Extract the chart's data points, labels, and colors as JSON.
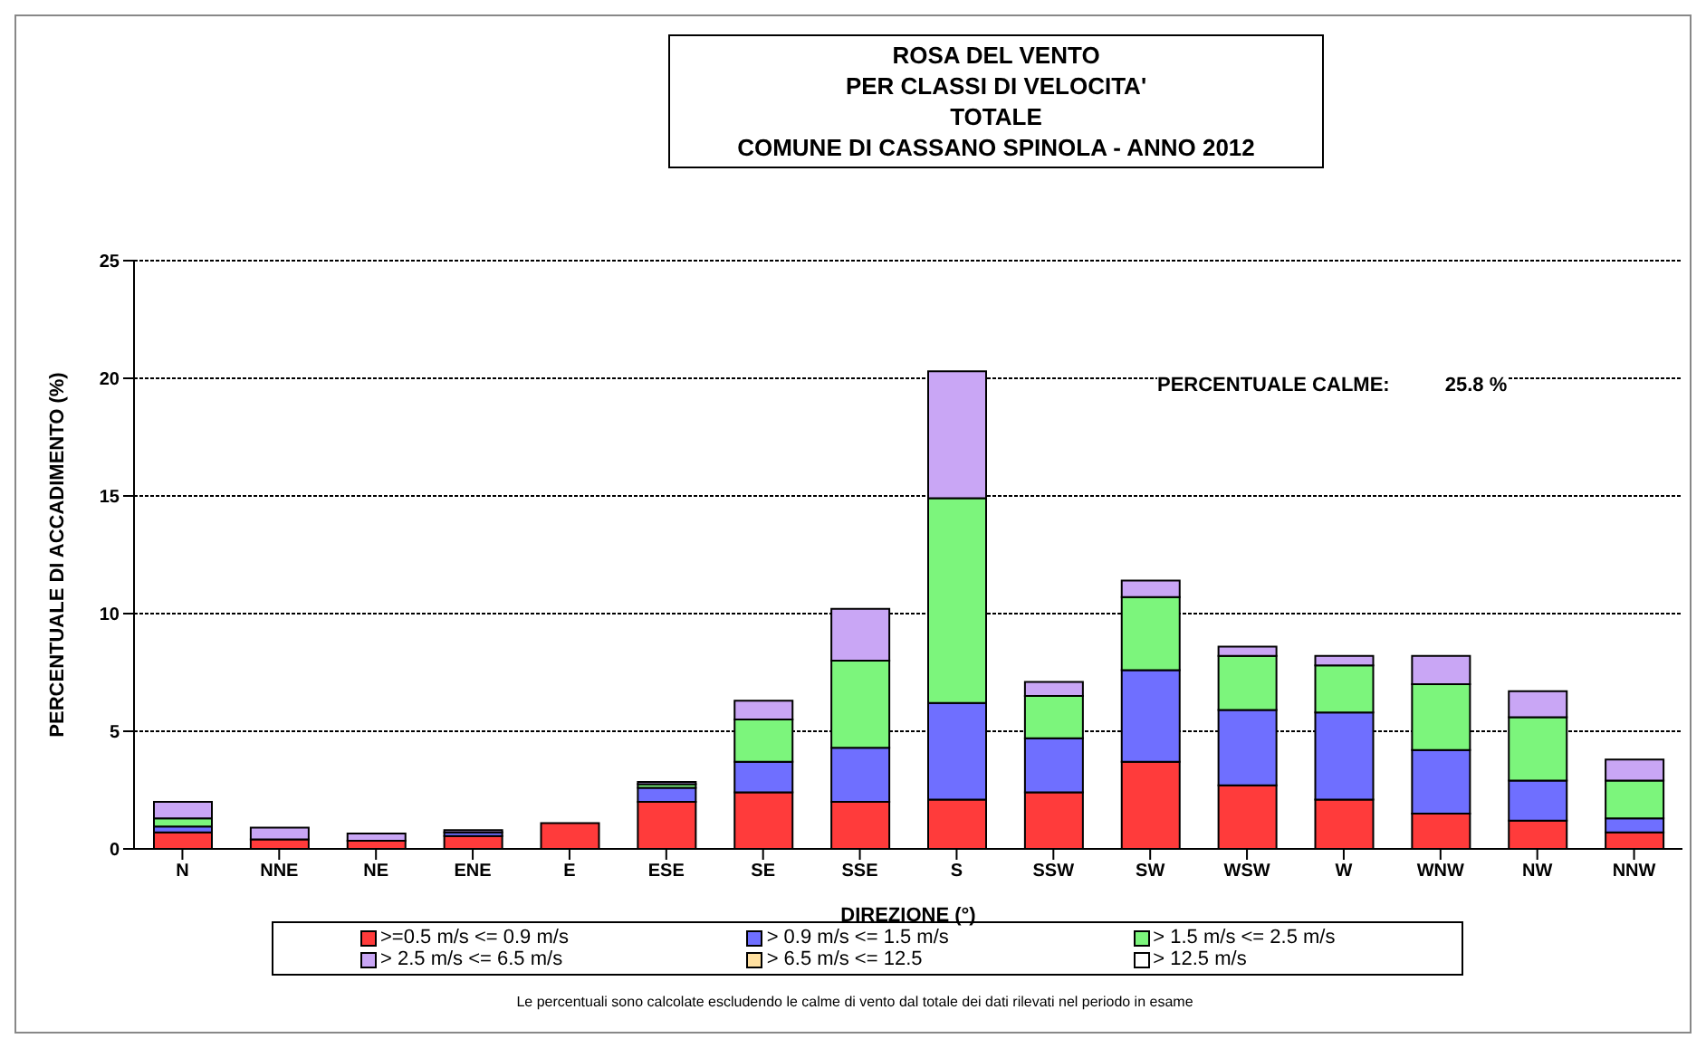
{
  "chart_data": {
    "type": "bar",
    "stacked": true,
    "title": "ROSA DEL VENTO\nPER CLASSI DI VELOCITA'\nTOTALE\nCOMUNE DI CASSANO SPINOLA - ANNO 2012",
    "xlabel": "DIREZIONE (°)",
    "ylabel": "PERCENTUALE DI ACCADIMENTO (%)",
    "categories": [
      "N",
      "NNE",
      "NE",
      "ENE",
      "E",
      "ESE",
      "SE",
      "SSE",
      "S",
      "SSW",
      "SW",
      "WSW",
      "W",
      "WNW",
      "NW",
      "NNW"
    ],
    "series": [
      {
        "name": ">=0.5 m/s <= 0.9 m/s",
        "color": "#ff3b3b",
        "values": [
          0.7,
          0.4,
          0.35,
          0.55,
          1.1,
          2.0,
          2.4,
          2.0,
          2.1,
          2.4,
          3.7,
          2.7,
          2.1,
          1.5,
          1.2,
          0.7
        ]
      },
      {
        "name": "> 0.9 m/s <= 1.5 m/s",
        "color": "#6f6fff",
        "values": [
          0.25,
          null,
          0,
          0.15,
          0,
          0.6,
          1.3,
          2.3,
          4.1,
          2.3,
          3.9,
          3.2,
          3.7,
          2.7,
          1.7,
          0.6
        ]
      },
      {
        "name": "> 1.5 m/s <= 2.5 m/s",
        "color": "#7cf57c",
        "values": [
          0.35,
          0,
          0,
          0,
          0,
          0.15,
          1.8,
          3.7,
          8.7,
          1.8,
          3.1,
          2.3,
          2.0,
          2.8,
          2.7,
          1.6
        ]
      },
      {
        "name": "> 2.5 m/s <= 6.5 m/s",
        "color": "#c9a6f5",
        "values": [
          0.7,
          0.5,
          0.3,
          0.1,
          0,
          0.1,
          0.8,
          2.2,
          5.4,
          0.6,
          0.7,
          0.4,
          0.4,
          1.2,
          1.1,
          0.9
        ]
      },
      {
        "name": "> 6.5 m/s <= 12.5",
        "color": "#ffe0a0",
        "values": [
          0,
          0,
          0,
          0,
          0,
          0,
          0,
          0,
          0,
          0,
          0,
          0,
          0,
          0,
          0,
          0
        ]
      },
      {
        "name": "> 12.5 m/s",
        "color": "#ffffff",
        "values": [
          0,
          0,
          0,
          0,
          0,
          0,
          0,
          0,
          0,
          0,
          0,
          0,
          0,
          0,
          0,
          0
        ]
      }
    ],
    "ylim": [
      0,
      25
    ],
    "yticks": [
      0,
      5,
      10,
      15,
      20,
      25
    ],
    "grid": "y",
    "legend": "bottom",
    "annotations": [
      "PERCENTUALE CALME:          25.8 %",
      "Le percentuali sono calcolate escludendo le calme di vento dal totale dei dati rilevati nel periodo in esame"
    ]
  }
}
